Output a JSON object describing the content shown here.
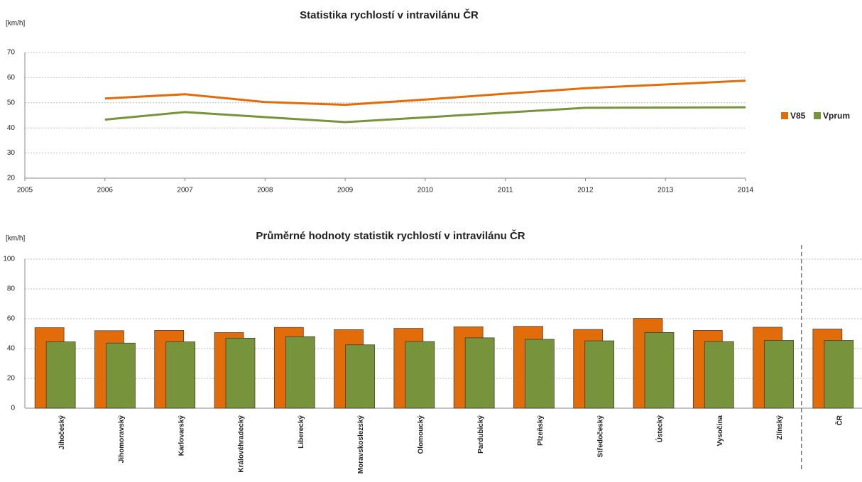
{
  "chart_data": [
    {
      "type": "line",
      "title": "Statistika rychlostí v intravilánu ČR",
      "ylabel": "[km/h]",
      "x": [
        2006,
        2007,
        2008,
        2009,
        2010,
        2011,
        2012,
        2013,
        2014
      ],
      "series": [
        {
          "name": "V85",
          "color": "#e36c0a",
          "values": [
            51.7,
            53.4,
            50.3,
            49.2,
            51.3,
            53.6,
            55.8,
            57.3,
            58.8
          ]
        },
        {
          "name": "Vprum",
          "color": "#77933c",
          "values": [
            43.3,
            46.3,
            44.3,
            42.3,
            44.2,
            46.1,
            48.0,
            48.1,
            48.2
          ]
        }
      ],
      "xlim": [
        2005,
        2014
      ],
      "xticks": [
        2005,
        2006,
        2007,
        2008,
        2009,
        2010,
        2011,
        2012,
        2013,
        2014
      ],
      "ylim": [
        20,
        70
      ],
      "yticks": [
        20,
        30,
        40,
        50,
        60,
        70
      ],
      "grid": true,
      "legend": "right"
    },
    {
      "type": "bar",
      "title": "Průměrné hodnoty statistik rychlostí v intravilánu ČR",
      "ylabel": "[km/h]",
      "categories": [
        "Jihočeský",
        "Jihomoravský",
        "Karlovarský",
        "Královéhradecký",
        "Liberecký",
        "Moravskoslezský",
        "Olomoucký",
        "Pardubický",
        "Plzeňský",
        "Středočeský",
        "Ústecký",
        "Vysočina",
        "Zlínský",
        "ČR"
      ],
      "series": [
        {
          "color": "#e36c0a",
          "values": [
            54,
            52,
            52.2,
            50.7,
            54.2,
            52.7,
            53.5,
            54.6,
            54.9,
            52.8,
            60.2,
            52.2,
            54.3,
            53.1
          ]
        },
        {
          "color": "#77933c",
          "values": [
            44.5,
            43.7,
            44.5,
            47,
            48,
            42.5,
            44.7,
            47.2,
            46.2,
            45.2,
            50.8,
            44.7,
            45.5,
            45.5
          ]
        }
      ],
      "ylim": [
        0,
        100
      ],
      "yticks": [
        0,
        20,
        40,
        60,
        80,
        100
      ],
      "grid": true
    }
  ]
}
